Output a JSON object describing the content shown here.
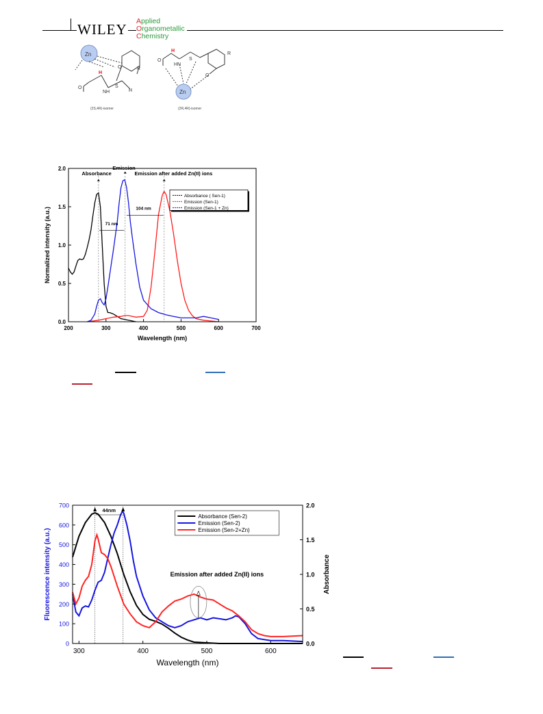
{
  "header": {
    "logo": "WILEY",
    "journal_lines": [
      {
        "initial": "A",
        "rest": "pplied"
      },
      {
        "initial": "O",
        "rest": "rganometallic"
      },
      {
        "initial": "C",
        "rest": "hemistry"
      }
    ]
  },
  "scheme": {
    "left_isomer_caption": "(2S,4R)-isomer",
    "right_isomer_caption": "(2R,4R)-isomer",
    "zn_label": "Zn",
    "r_label": "R",
    "h_label": "H",
    "o_label": "O",
    "s_label": "S",
    "nh_label": "NH",
    "hn_label": "HN"
  },
  "legend_swatch_colors": {
    "black": "#000000",
    "blue": "#2e6db4",
    "red": "#b8222f"
  },
  "chart_data": [
    {
      "type": "line",
      "xlabel": "Wavelength (nm)",
      "ylabel": "Normalized intensity (a.u.)",
      "xlim": [
        200,
        700
      ],
      "ylim": [
        0,
        2.0
      ],
      "xticks": [
        "200",
        "300",
        "400",
        "500",
        "600",
        "700"
      ],
      "yticks": [
        "0.0",
        "0.5",
        "1.0",
        "1.5",
        "2.0"
      ],
      "legend": {
        "placement": "top-right",
        "entries": [
          "Absorbance  ( Sen-1)",
          "Emission     (Sen-1)",
          "Emission     (Sen-1 + Zn)"
        ]
      },
      "annotations": [
        "Absorbance",
        "Emission",
        "Emission after added Zn(II) ions",
        "71 nm",
        "104 nm"
      ],
      "series": [
        {
          "name": "Absorbance  ( Sen-1)",
          "color": "#000000",
          "x": [
            200,
            205,
            210,
            215,
            220,
            225,
            230,
            235,
            240,
            245,
            250,
            255,
            260,
            265,
            270,
            275,
            280,
            285,
            290,
            295,
            300,
            305,
            310,
            320,
            330,
            340,
            350,
            360,
            370,
            380
          ],
          "y": [
            0.7,
            0.65,
            0.62,
            0.65,
            0.73,
            0.8,
            0.82,
            0.81,
            0.82,
            0.88,
            0.97,
            1.07,
            1.2,
            1.38,
            1.55,
            1.66,
            1.68,
            1.5,
            1.0,
            0.5,
            0.2,
            0.12,
            0.12,
            0.1,
            0.07,
            0.04,
            0.03,
            0.02,
            0.01,
            0.0
          ]
        },
        {
          "name": "Emission     (Sen-1)",
          "color": "#ff1a1a",
          "x": [
            250,
            280,
            300,
            320,
            340,
            350,
            360,
            380,
            400,
            410,
            420,
            430,
            440,
            450,
            455,
            460,
            470,
            480,
            490,
            500,
            510,
            520,
            530,
            540,
            560,
            580,
            600
          ],
          "y": [
            0.0,
            0.02,
            0.04,
            0.06,
            0.07,
            0.08,
            0.08,
            0.06,
            0.07,
            0.15,
            0.45,
            0.9,
            1.4,
            1.65,
            1.7,
            1.66,
            1.45,
            1.15,
            0.8,
            0.5,
            0.28,
            0.15,
            0.08,
            0.04,
            0.02,
            0.01,
            0.0
          ]
        },
        {
          "name": "Emission     (Sen-1 + Zn)",
          "color": "#1515e0",
          "x": [
            250,
            260,
            270,
            275,
            280,
            285,
            290,
            295,
            300,
            305,
            310,
            320,
            330,
            335,
            340,
            345,
            350,
            355,
            360,
            365,
            370,
            380,
            390,
            400,
            420,
            440,
            460,
            480,
            500,
            520,
            540,
            560,
            580,
            600
          ],
          "y": [
            0.0,
            0.02,
            0.1,
            0.2,
            0.28,
            0.3,
            0.25,
            0.22,
            0.3,
            0.45,
            0.62,
            0.95,
            1.3,
            1.55,
            1.75,
            1.84,
            1.85,
            1.75,
            1.55,
            1.3,
            1.1,
            0.75,
            0.45,
            0.28,
            0.17,
            0.12,
            0.09,
            0.07,
            0.05,
            0.05,
            0.05,
            0.07,
            0.05,
            0.03
          ]
        }
      ]
    },
    {
      "type": "line",
      "xlabel": "Wavelength (nm)",
      "ylabel": "Fluorescence intensity (a.u.)",
      "y2label": "Absorbance",
      "xlim": [
        290,
        650
      ],
      "ylim": [
        0,
        700
      ],
      "y2lim": [
        0,
        2.0
      ],
      "xticks": [
        "300",
        "400",
        "500",
        "600"
      ],
      "yticks": [
        "0",
        "100",
        "200",
        "300",
        "400",
        "500",
        "600",
        "700"
      ],
      "y2ticks": [
        "0.0",
        "0.5",
        "1.0",
        "1.5",
        "2.0"
      ],
      "legend": {
        "placement": "top-right",
        "entries": [
          "Absorbance (Sen-2)",
          "Emission      (Sen-2)",
          "Emission      (Sen-2+Zn)"
        ]
      },
      "annotations": [
        "44nm",
        "Emission after added Zn(II) ions"
      ],
      "series": [
        {
          "name": "Absorbance (Sen-2)",
          "axis": "right",
          "color": "#000000",
          "x": [
            290,
            300,
            310,
            320,
            325,
            330,
            340,
            350,
            360,
            370,
            380,
            390,
            400,
            410,
            420,
            430,
            440,
            450,
            460,
            470,
            480,
            500,
            520,
            550,
            600,
            650
          ],
          "y": [
            1.25,
            1.55,
            1.75,
            1.87,
            1.89,
            1.87,
            1.75,
            1.55,
            1.3,
            1.0,
            0.75,
            0.55,
            0.42,
            0.35,
            0.32,
            0.28,
            0.22,
            0.15,
            0.09,
            0.05,
            0.02,
            0.01,
            0.0,
            0.0,
            0.0,
            0.0
          ]
        },
        {
          "name": "Emission      (Sen-2)",
          "axis": "left",
          "color": "#1515e0",
          "x": [
            290,
            295,
            300,
            305,
            310,
            315,
            320,
            325,
            330,
            335,
            340,
            345,
            350,
            355,
            360,
            365,
            368,
            370,
            375,
            380,
            385,
            390,
            400,
            410,
            420,
            430,
            440,
            450,
            460,
            470,
            480,
            490,
            500,
            510,
            520,
            530,
            540,
            545,
            550,
            560,
            570,
            580,
            600,
            620,
            650
          ],
          "y": [
            250,
            160,
            140,
            180,
            190,
            185,
            220,
            270,
            310,
            320,
            360,
            430,
            500,
            560,
            600,
            650,
            670,
            660,
            600,
            520,
            420,
            340,
            240,
            170,
            130,
            110,
            90,
            80,
            90,
            110,
            120,
            130,
            120,
            130,
            125,
            120,
            130,
            140,
            135,
            100,
            50,
            25,
            15,
            15,
            10
          ]
        },
        {
          "name": "Emission      (Sen-2+Zn)",
          "axis": "left",
          "color": "#ff2222",
          "x": [
            290,
            295,
            300,
            305,
            310,
            315,
            320,
            325,
            328,
            330,
            335,
            340,
            345,
            350,
            360,
            370,
            380,
            390,
            400,
            410,
            420,
            430,
            440,
            450,
            460,
            470,
            480,
            490,
            500,
            510,
            520,
            530,
            540,
            550,
            560,
            570,
            580,
            590,
            600,
            620,
            650
          ],
          "y": [
            260,
            200,
            230,
            290,
            320,
            340,
            400,
            520,
            550,
            530,
            460,
            450,
            430,
            390,
            290,
            200,
            150,
            110,
            90,
            80,
            110,
            160,
            190,
            215,
            225,
            240,
            250,
            235,
            225,
            220,
            200,
            180,
            165,
            140,
            110,
            70,
            50,
            40,
            35,
            35,
            40
          ]
        }
      ]
    }
  ]
}
